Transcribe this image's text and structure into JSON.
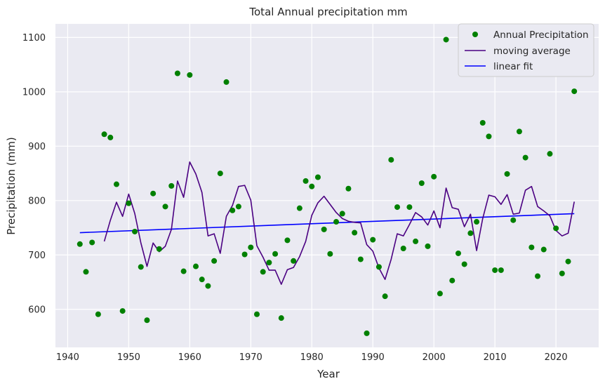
{
  "chart_data": {
    "type": "scatter",
    "title": "Total Annual precipitation mm",
    "xlabel": "Year",
    "ylabel": "Precipitation (mm)",
    "xlim": [
      1938,
      2027
    ],
    "ylim": [
      530,
      1125
    ],
    "xticks": [
      1940,
      1950,
      1960,
      1970,
      1980,
      1990,
      2000,
      2010,
      2020
    ],
    "yticks": [
      600,
      700,
      800,
      900,
      1000,
      1100
    ],
    "grid": true,
    "legend_position": "top-right",
    "background_color": "#eaeaf2",
    "grid_color": "#ffffff",
    "series": [
      {
        "name": "Annual Precipitation",
        "kind": "scatter",
        "color": "#008000",
        "points": [
          [
            1942,
            720
          ],
          [
            1943,
            669
          ],
          [
            1944,
            723
          ],
          [
            1945,
            591
          ],
          [
            1946,
            922
          ],
          [
            1947,
            916
          ],
          [
            1948,
            830
          ],
          [
            1949,
            597
          ],
          [
            1950,
            795
          ],
          [
            1951,
            743
          ],
          [
            1952,
            678
          ],
          [
            1953,
            580
          ],
          [
            1954,
            813
          ],
          [
            1955,
            711
          ],
          [
            1956,
            789
          ],
          [
            1957,
            827
          ],
          [
            1958,
            1034
          ],
          [
            1959,
            670
          ],
          [
            1960,
            1031
          ],
          [
            1961,
            679
          ],
          [
            1962,
            655
          ],
          [
            1963,
            643
          ],
          [
            1964,
            689
          ],
          [
            1965,
            850
          ],
          [
            1966,
            1018
          ],
          [
            1967,
            782
          ],
          [
            1968,
            789
          ],
          [
            1969,
            701
          ],
          [
            1970,
            714
          ],
          [
            1971,
            591
          ],
          [
            1972,
            669
          ],
          [
            1973,
            686
          ],
          [
            1974,
            702
          ],
          [
            1975,
            584
          ],
          [
            1976,
            727
          ],
          [
            1977,
            689
          ],
          [
            1978,
            786
          ],
          [
            1979,
            836
          ],
          [
            1980,
            826
          ],
          [
            1981,
            843
          ],
          [
            1982,
            747
          ],
          [
            1983,
            702
          ],
          [
            1984,
            761
          ],
          [
            1985,
            776
          ],
          [
            1986,
            822
          ],
          [
            1987,
            741
          ],
          [
            1988,
            692
          ],
          [
            1989,
            556
          ],
          [
            1990,
            728
          ],
          [
            1991,
            678
          ],
          [
            1992,
            624
          ],
          [
            1993,
            875
          ],
          [
            1994,
            788
          ],
          [
            1995,
            712
          ],
          [
            1996,
            788
          ],
          [
            1997,
            725
          ],
          [
            1998,
            832
          ],
          [
            1999,
            716
          ],
          [
            2000,
            844
          ],
          [
            2001,
            629
          ],
          [
            2002,
            1096
          ],
          [
            2003,
            653
          ],
          [
            2004,
            703
          ],
          [
            2005,
            683
          ],
          [
            2006,
            740
          ],
          [
            2007,
            761
          ],
          [
            2008,
            943
          ],
          [
            2009,
            918
          ],
          [
            2010,
            672
          ],
          [
            2011,
            672
          ],
          [
            2012,
            849
          ],
          [
            2013,
            764
          ],
          [
            2014,
            927
          ],
          [
            2015,
            879
          ],
          [
            2016,
            714
          ],
          [
            2017,
            661
          ],
          [
            2018,
            710
          ],
          [
            2019,
            886
          ],
          [
            2020,
            749
          ],
          [
            2021,
            666
          ],
          [
            2022,
            688
          ],
          [
            2023,
            1001
          ]
        ]
      },
      {
        "name": "moving average",
        "kind": "line",
        "color": "#4b0082",
        "points": [
          [
            1946,
            725
          ],
          [
            1947,
            764
          ],
          [
            1948,
            797
          ],
          [
            1949,
            771
          ],
          [
            1950,
            812
          ],
          [
            1951,
            776
          ],
          [
            1952,
            722
          ],
          [
            1953,
            679
          ],
          [
            1954,
            722
          ],
          [
            1955,
            706
          ],
          [
            1956,
            716
          ],
          [
            1957,
            747
          ],
          [
            1958,
            836
          ],
          [
            1959,
            806
          ],
          [
            1960,
            871
          ],
          [
            1961,
            849
          ],
          [
            1962,
            815
          ],
          [
            1963,
            735
          ],
          [
            1964,
            739
          ],
          [
            1965,
            703
          ],
          [
            1966,
            771
          ],
          [
            1967,
            791
          ],
          [
            1968,
            826
          ],
          [
            1969,
            828
          ],
          [
            1970,
            801
          ],
          [
            1971,
            717
          ],
          [
            1972,
            696
          ],
          [
            1973,
            672
          ],
          [
            1974,
            672
          ],
          [
            1975,
            646
          ],
          [
            1976,
            673
          ],
          [
            1977,
            677
          ],
          [
            1978,
            697
          ],
          [
            1979,
            725
          ],
          [
            1980,
            773
          ],
          [
            1981,
            796
          ],
          [
            1982,
            808
          ],
          [
            1983,
            793
          ],
          [
            1984,
            778
          ],
          [
            1985,
            767
          ],
          [
            1986,
            762
          ],
          [
            1987,
            760
          ],
          [
            1988,
            759
          ],
          [
            1989,
            719
          ],
          [
            1990,
            707
          ],
          [
            1991,
            676
          ],
          [
            1992,
            655
          ],
          [
            1993,
            692
          ],
          [
            1994,
            739
          ],
          [
            1995,
            735
          ],
          [
            1996,
            756
          ],
          [
            1997,
            778
          ],
          [
            1998,
            770
          ],
          [
            1999,
            755
          ],
          [
            2000,
            781
          ],
          [
            2001,
            750
          ],
          [
            2002,
            823
          ],
          [
            2003,
            787
          ],
          [
            2004,
            784
          ],
          [
            2005,
            752
          ],
          [
            2006,
            775
          ],
          [
            2007,
            708
          ],
          [
            2008,
            767
          ],
          [
            2009,
            810
          ],
          [
            2010,
            807
          ],
          [
            2011,
            793
          ],
          [
            2012,
            811
          ],
          [
            2013,
            775
          ],
          [
            2014,
            777
          ],
          [
            2015,
            819
          ],
          [
            2016,
            826
          ],
          [
            2017,
            789
          ],
          [
            2018,
            781
          ],
          [
            2019,
            772
          ],
          [
            2020,
            745
          ],
          [
            2021,
            735
          ],
          [
            2022,
            740
          ],
          [
            2023,
            798
          ]
        ]
      },
      {
        "name": "linear fit",
        "kind": "line",
        "color": "#0000ff",
        "points": [
          [
            1942,
            741
          ],
          [
            2023,
            776
          ]
        ]
      }
    ]
  }
}
